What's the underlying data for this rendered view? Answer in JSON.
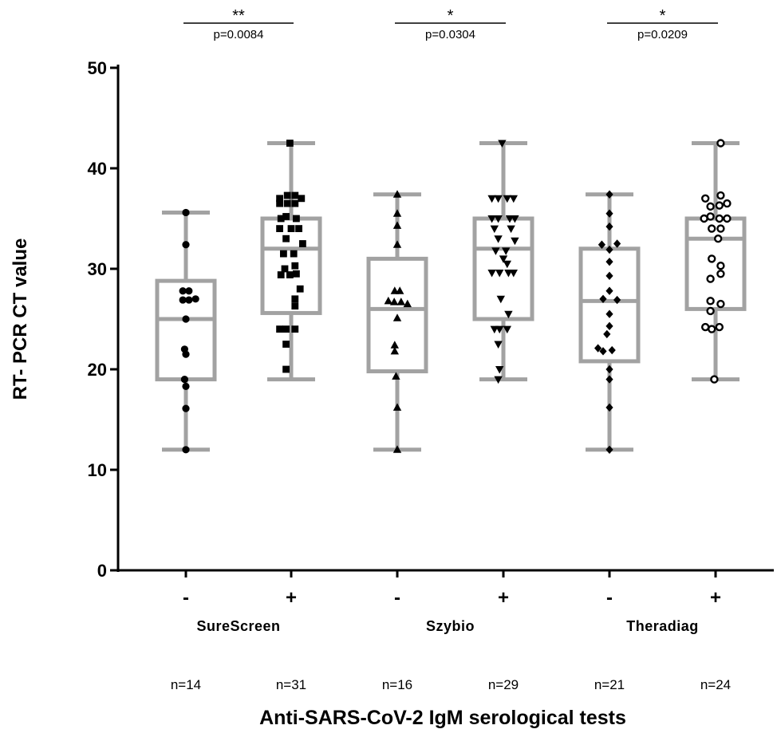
{
  "chart_data": {
    "type": "box",
    "title": "",
    "xlabel": "Anti-SARS-CoV-2 IgM serological tests",
    "ylabel": "RT- PCR CT value",
    "ylim": [
      0,
      50
    ],
    "yticks": [
      "0",
      "10",
      "20",
      "30",
      "40",
      "50"
    ],
    "colors": {
      "box": "#a2a2a2",
      "axis": "#000000",
      "points": "#000000"
    },
    "groups": [
      {
        "test": "SureScreen",
        "comparison": {
          "stars": "**",
          "p_label": "p=0.0084"
        },
        "boxes": [
          {
            "sign": "-",
            "n_label": "n=14",
            "marker": "circle",
            "whisker_low": 12,
            "q1": 19,
            "median": 25,
            "q3": 28.8,
            "whisker_high": 35.6,
            "points": [
              [
                0,
                35.6
              ],
              [
                0,
                32.4
              ],
              [
                -0.12,
                27.8
              ],
              [
                0.12,
                27.8
              ],
              [
                -0.12,
                26.9
              ],
              [
                0.12,
                26.9
              ],
              [
                0.38,
                27
              ],
              [
                0,
                25
              ],
              [
                -0.05,
                22
              ],
              [
                0,
                21.5
              ],
              [
                -0.05,
                19
              ],
              [
                0,
                18.3
              ],
              [
                0,
                16.1
              ],
              [
                0,
                12
              ]
            ]
          },
          {
            "sign": "+",
            "n_label": "n=31",
            "marker": "square",
            "whisker_low": 19,
            "q1": 25.6,
            "median": 32,
            "q3": 35,
            "whisker_high": 42.5,
            "points": [
              [
                -0.05,
                42.5
              ],
              [
                -0.45,
                37
              ],
              [
                -0.15,
                37.3
              ],
              [
                0.15,
                37.3
              ],
              [
                0.4,
                37
              ],
              [
                -0.45,
                36.5
              ],
              [
                -0.15,
                36.5
              ],
              [
                0.15,
                36.5
              ],
              [
                -0.4,
                35
              ],
              [
                -0.2,
                35.2
              ],
              [
                0.2,
                35
              ],
              [
                -0.45,
                34
              ],
              [
                0,
                34
              ],
              [
                0.3,
                34
              ],
              [
                -0.2,
                33
              ],
              [
                0.45,
                32.5
              ],
              [
                -0.3,
                31.5
              ],
              [
                0.1,
                31.5
              ],
              [
                0.15,
                30.3
              ],
              [
                -0.25,
                30
              ],
              [
                -0.4,
                29.4
              ],
              [
                -0.05,
                29.4
              ],
              [
                0.2,
                29.5
              ],
              [
                0.35,
                28
              ],
              [
                0.15,
                27
              ],
              [
                0.15,
                26.3
              ],
              [
                -0.45,
                24
              ],
              [
                -0.2,
                24
              ],
              [
                0.15,
                24
              ],
              [
                -0.2,
                22.5
              ],
              [
                -0.2,
                20
              ]
            ]
          }
        ]
      },
      {
        "test": "Szybio",
        "comparison": {
          "stars": "*",
          "p_label": "p=0.0304"
        },
        "boxes": [
          {
            "sign": "-",
            "n_label": "n=16",
            "marker": "triangle-up",
            "whisker_low": 12,
            "q1": 19.8,
            "median": 26,
            "q3": 31,
            "whisker_high": 37.4,
            "points": [
              [
                0,
                37.4
              ],
              [
                0,
                35.5
              ],
              [
                0,
                34.3
              ],
              [
                0,
                32.4
              ],
              [
                -0.1,
                27.8
              ],
              [
                0.1,
                27.8
              ],
              [
                -0.35,
                26.8
              ],
              [
                -0.12,
                26.7
              ],
              [
                0.15,
                26.7
              ],
              [
                0.4,
                26.5
              ],
              [
                0,
                25.1
              ],
              [
                -0.1,
                22.4
              ],
              [
                -0.1,
                21.8
              ],
              [
                -0.05,
                19.3
              ],
              [
                0,
                16.2
              ],
              [
                0,
                12
              ]
            ]
          },
          {
            "sign": "+",
            "n_label": "n=29",
            "marker": "triangle-down",
            "whisker_low": 19,
            "q1": 25,
            "median": 32,
            "q3": 35,
            "whisker_high": 42.5,
            "points": [
              [
                -0.05,
                42.5
              ],
              [
                -0.45,
                37
              ],
              [
                -0.2,
                37
              ],
              [
                0.15,
                37
              ],
              [
                0.4,
                37
              ],
              [
                -0.45,
                35
              ],
              [
                -0.2,
                35
              ],
              [
                0.25,
                35
              ],
              [
                0.45,
                35
              ],
              [
                -0.35,
                34
              ],
              [
                0.3,
                34
              ],
              [
                -0.2,
                33
              ],
              [
                0.45,
                32.8
              ],
              [
                -0.3,
                31.8
              ],
              [
                0.1,
                31.8
              ],
              [
                0.15,
                30.5
              ],
              [
                -0.45,
                29.6
              ],
              [
                -0.15,
                29.6
              ],
              [
                0.2,
                29.6
              ],
              [
                0.4,
                29.6
              ],
              [
                -0.1,
                27
              ],
              [
                0.2,
                25.5
              ],
              [
                -0.35,
                24
              ],
              [
                -0.15,
                24
              ],
              [
                0.15,
                24
              ],
              [
                -0.2,
                22.5
              ],
              [
                -0.15,
                20
              ],
              [
                -0.2,
                19
              ],
              [
                0,
                31
              ]
            ]
          }
        ]
      },
      {
        "test": "Theradiag",
        "comparison": {
          "stars": "*",
          "p_label": "p=0.0209"
        },
        "boxes": [
          {
            "sign": "-",
            "n_label": "n=21",
            "marker": "diamond",
            "whisker_low": 12,
            "q1": 20.8,
            "median": 26.8,
            "q3": 32,
            "whisker_high": 37.4,
            "points": [
              [
                0,
                37.4
              ],
              [
                0,
                35.5
              ],
              [
                0,
                34.2
              ],
              [
                -0.3,
                32.4
              ],
              [
                0.3,
                32.5
              ],
              [
                0,
                31.9
              ],
              [
                0,
                30.7
              ],
              [
                0,
                29.3
              ],
              [
                0,
                27.8
              ],
              [
                -0.25,
                27
              ],
              [
                0.3,
                26.9
              ],
              [
                0,
                25.5
              ],
              [
                0,
                24.3
              ],
              [
                -0.1,
                23.5
              ],
              [
                -0.45,
                22.1
              ],
              [
                -0.25,
                21.8
              ],
              [
                0.1,
                21.9
              ],
              [
                0,
                20
              ],
              [
                0,
                19
              ],
              [
                0,
                16.2
              ],
              [
                0,
                12
              ]
            ]
          },
          {
            "sign": "+",
            "n_label": "n=24",
            "marker": "circle-open",
            "whisker_low": 19,
            "q1": 26,
            "median": 33,
            "q3": 35,
            "whisker_high": 42.5,
            "points": [
              [
                0.2,
                42.5
              ],
              [
                -0.4,
                37
              ],
              [
                0.2,
                37.3
              ],
              [
                0.45,
                36.5
              ],
              [
                -0.2,
                36.2
              ],
              [
                0.15,
                36.3
              ],
              [
                -0.45,
                35
              ],
              [
                -0.2,
                35.2
              ],
              [
                0.15,
                35
              ],
              [
                0.45,
                35
              ],
              [
                -0.15,
                34
              ],
              [
                0.2,
                34
              ],
              [
                0.1,
                33
              ],
              [
                -0.15,
                31
              ],
              [
                0.2,
                30.3
              ],
              [
                0.2,
                29.5
              ],
              [
                -0.2,
                29
              ],
              [
                -0.2,
                26.8
              ],
              [
                0.2,
                26.5
              ],
              [
                -0.2,
                25.8
              ],
              [
                -0.4,
                24.2
              ],
              [
                -0.15,
                24
              ],
              [
                0.15,
                24.2
              ],
              [
                -0.05,
                19
              ]
            ]
          }
        ]
      }
    ]
  }
}
